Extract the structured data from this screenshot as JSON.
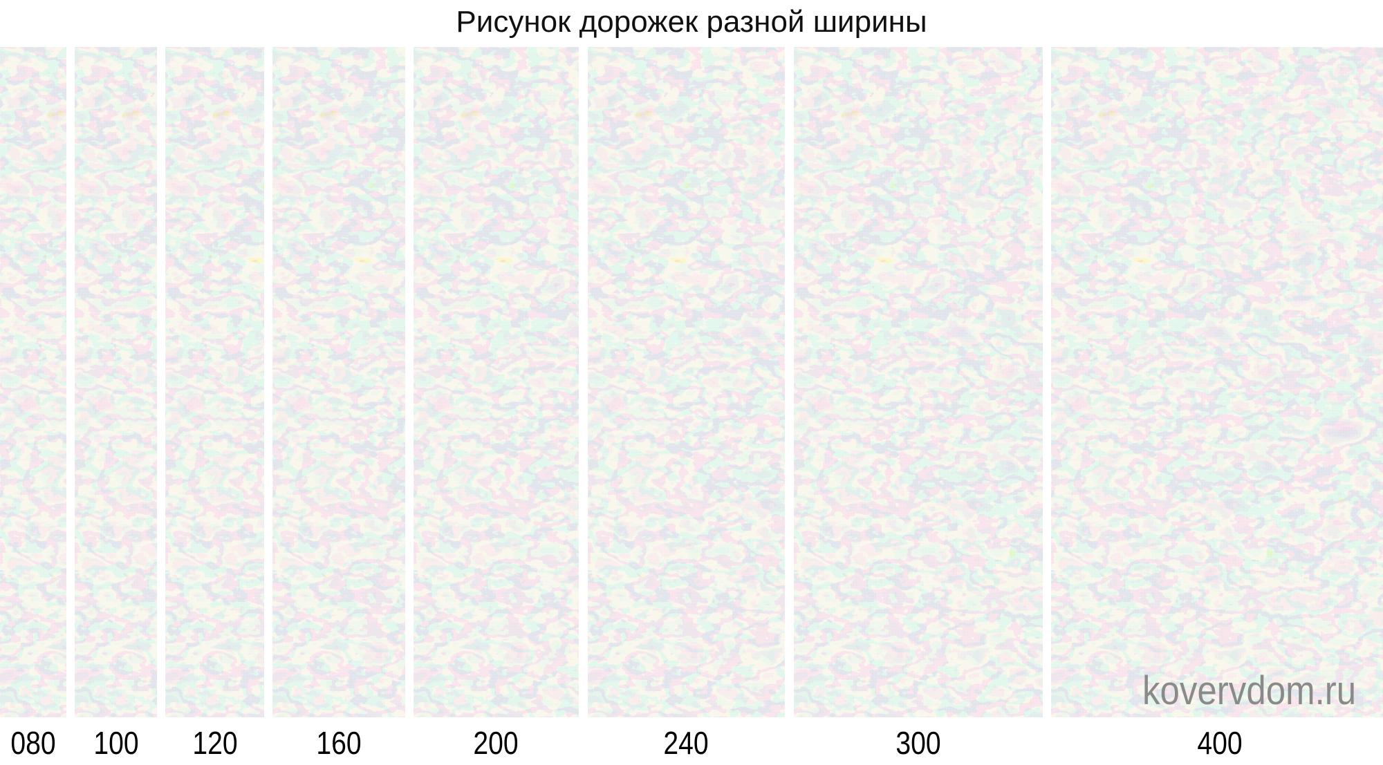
{
  "title": "Рисунок дорожек разной ширины",
  "strips": [
    {
      "label": "080"
    },
    {
      "label": "100"
    },
    {
      "label": "120"
    },
    {
      "label": "160"
    },
    {
      "label": "200"
    },
    {
      "label": "240"
    },
    {
      "label": "300"
    },
    {
      "label": "400"
    }
  ],
  "watermark": "kovervdom.ru",
  "colors": {
    "cream": "#f1ecd8",
    "blue_gray": "#c3c6d3",
    "tan": "#c6bb92",
    "light_gray": "#dcd9d4"
  }
}
